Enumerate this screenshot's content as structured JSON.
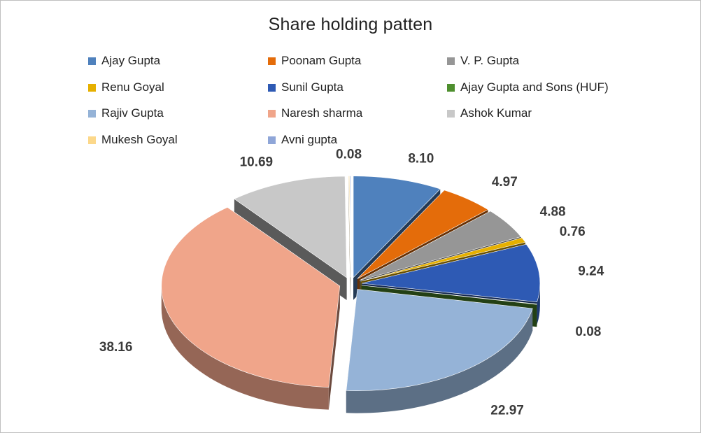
{
  "chart_data": {
    "type": "pie",
    "title": "Share holding patten",
    "legend_placement": "top",
    "series": [
      {
        "name": "Ajay Gupta",
        "value": 8.1,
        "label": "8.10",
        "color": "#4f81bd"
      },
      {
        "name": "Poonam Gupta",
        "value": 4.97,
        "label": "4.97",
        "color": "#e46c0a"
      },
      {
        "name": "V. P. Gupta",
        "value": 4.88,
        "label": "4.88",
        "color": "#969696"
      },
      {
        "name": "Renu Goyal",
        "value": 0.76,
        "label": "0.76",
        "color": "#e6b000"
      },
      {
        "name": "Sunil Gupta",
        "value": 9.24,
        "label": "9.24",
        "color": "#2e5ab4"
      },
      {
        "name": "Ajay Gupta and Sons (HUF)",
        "value": 0.08,
        "label": "0.08",
        "color": "#4e8f2e"
      },
      {
        "name": "Rajiv Gupta",
        "value": 22.97,
        "label": "22.97",
        "color": "#95b3d7"
      },
      {
        "name": "Naresh sharma",
        "value": 38.16,
        "label": "38.16",
        "color": "#f0a58a"
      },
      {
        "name": "Ashok Kumar",
        "value": 10.69,
        "label": "10.69",
        "color": "#c8c8c8"
      },
      {
        "name": "Mukesh Goyal",
        "value": 0.08,
        "label": "0.08",
        "color": "#fcd88a"
      },
      {
        "name": "Avni gupta",
        "value": 0.08,
        "label": "",
        "color": "#8fa6d8"
      }
    ]
  }
}
